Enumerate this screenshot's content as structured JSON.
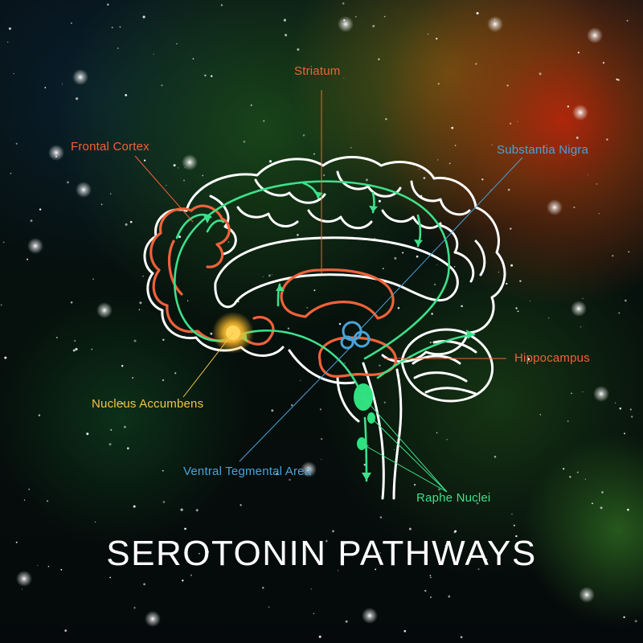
{
  "title": "SEROTONIN PATHWAYS",
  "labels": {
    "striatum": "Striatum",
    "frontal_cortex": "Frontal Cortex",
    "substantia_nigra": "Substantia Nigra",
    "hippocampus": "Hippocampus",
    "nucleus_accumbens": "Nucleus Accumbens",
    "ventral_tegmental_area": "Ventral Tegmental Area",
    "raphe_nuclei": "Raphe Nuclei"
  },
  "colors": {
    "orange": "#f0623a",
    "blue": "#4aa3d8",
    "yellow": "#f5c542",
    "green": "#3ee08a",
    "outline": "#ffffff"
  }
}
